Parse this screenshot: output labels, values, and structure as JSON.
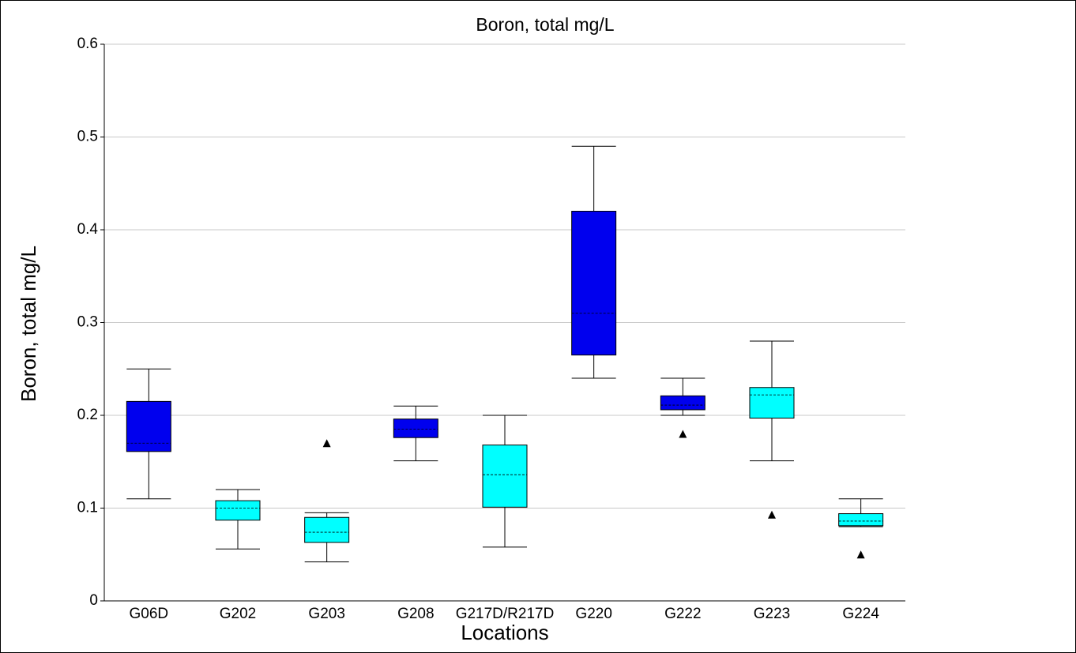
{
  "chart_data": {
    "type": "box",
    "title": "Boron, total mg/L",
    "x_label": "Locations",
    "y_label": "Boron, total mg/L",
    "categories": [
      "G06D",
      "G202",
      "G203",
      "G208",
      "G217D/R217D",
      "G220",
      "G222",
      "G223",
      "G224"
    ],
    "colors": [
      "#0000ee",
      "#00ffff",
      "#00ffff",
      "#0000ee",
      "#00ffff",
      "#0000ee",
      "#0000ee",
      "#00ffff",
      "#00ffff"
    ],
    "boxes": [
      {
        "whisker_high": 0.25,
        "q3": 0.215,
        "median": 0.17,
        "q1": 0.161,
        "whisker_low": 0.11
      },
      {
        "whisker_high": 0.12,
        "q3": 0.108,
        "median": 0.1,
        "q1": 0.087,
        "whisker_low": 0.056
      },
      {
        "whisker_high": 0.095,
        "q3": 0.09,
        "median": 0.074,
        "q1": 0.063,
        "whisker_low": 0.042,
        "outliers": [
          0.17
        ]
      },
      {
        "whisker_high": 0.21,
        "q3": 0.196,
        "median": 0.185,
        "q1": 0.176,
        "whisker_low": 0.151
      },
      {
        "whisker_high": 0.2,
        "q3": 0.168,
        "median": 0.136,
        "q1": 0.101,
        "whisker_low": 0.058
      },
      {
        "whisker_high": 0.49,
        "q3": 0.42,
        "median": 0.31,
        "q1": 0.265,
        "whisker_low": 0.24
      },
      {
        "whisker_high": 0.24,
        "q3": 0.221,
        "median": 0.211,
        "q1": 0.206,
        "whisker_low": 0.2,
        "outliers": [
          0.18
        ]
      },
      {
        "whisker_high": 0.28,
        "q3": 0.23,
        "median": 0.222,
        "q1": 0.197,
        "whisker_low": 0.151,
        "outliers": [
          0.093
        ]
      },
      {
        "whisker_high": 0.11,
        "q3": 0.094,
        "median": 0.086,
        "q1": 0.081,
        "whisker_low": 0.08,
        "outliers": [
          0.05
        ]
      }
    ],
    "ylim": [
      0,
      0.6
    ],
    "yticks": [
      0,
      0.1,
      0.2,
      0.3,
      0.4,
      0.5,
      0.6
    ],
    "grid": true
  }
}
